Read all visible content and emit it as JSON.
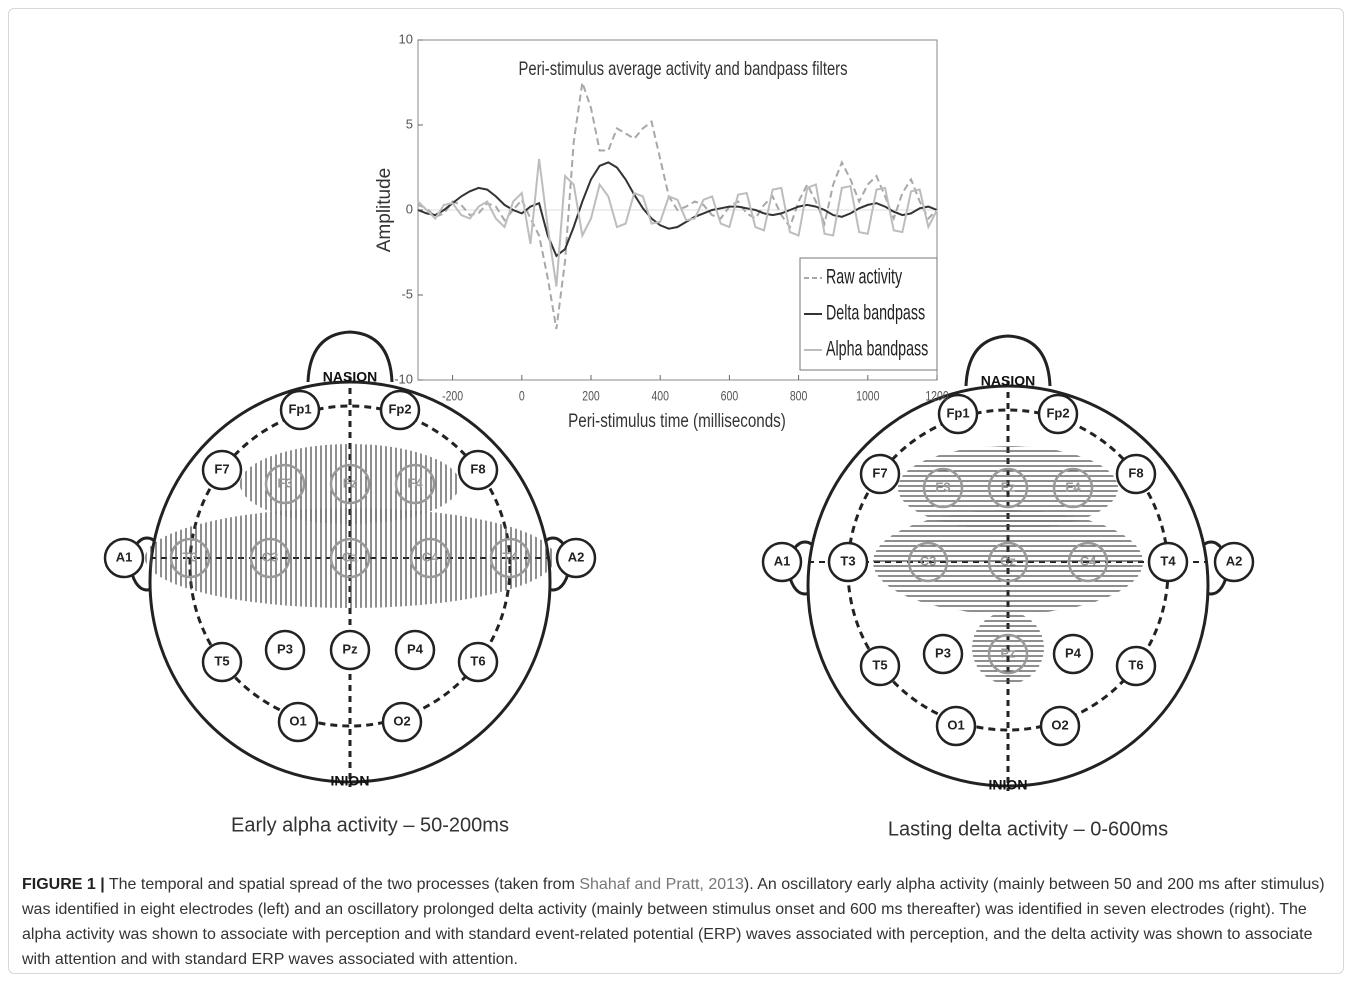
{
  "chart_data": {
    "type": "line",
    "title": "Peri-stimulus average activity and bandpass filters",
    "x_label": "Peri-stimulus time (milliseconds)",
    "y_label": "Amplitude",
    "x": [
      -300,
      -275,
      -250,
      -225,
      -200,
      -175,
      -150,
      -125,
      -100,
      -75,
      -50,
      -25,
      0,
      25,
      50,
      75,
      100,
      125,
      150,
      175,
      200,
      225,
      250,
      275,
      300,
      325,
      350,
      375,
      400,
      425,
      450,
      475,
      500,
      525,
      550,
      575,
      600,
      625,
      650,
      675,
      700,
      725,
      750,
      775,
      800,
      825,
      850,
      875,
      900,
      925,
      950,
      975,
      1000,
      1025,
      1050,
      1075,
      1100,
      1125,
      1150,
      1175,
      1200
    ],
    "series": [
      {
        "name": "Raw activity",
        "color": "#a8a8a8",
        "dash": true,
        "values": [
          0.3,
          0.1,
          -0.4,
          -0.2,
          0.5,
          0.3,
          -0.3,
          -0.2,
          0.4,
          0.2,
          -0.6,
          0,
          0.6,
          -0.5,
          -1.5,
          -4,
          -7,
          -3,
          4,
          7.5,
          6,
          3.5,
          3.5,
          4.8,
          4.5,
          4.2,
          4.8,
          5.2,
          3,
          0.8,
          0,
          0.2,
          0.5,
          0.3,
          -0.3,
          -0.5,
          0.2,
          0.5,
          -0.2,
          -0.5,
          0.3,
          0.8,
          -0.3,
          -1,
          0.5,
          1.5,
          0.5,
          -0.8,
          1.5,
          2.8,
          1.8,
          0.5,
          1.5,
          2,
          0.8,
          -0.5,
          1,
          1.8,
          0.5,
          -0.5,
          0
        ]
      },
      {
        "name": "Delta bandpass",
        "color": "#333333",
        "dash": false,
        "values": [
          0,
          -0.2,
          -0.3,
          0,
          0.4,
          0.8,
          1.1,
          1.3,
          1.2,
          0.8,
          0.3,
          0,
          -0.2,
          0.2,
          0.4,
          -1.5,
          -2.7,
          -2.3,
          -1,
          0.5,
          1.8,
          2.6,
          2.8,
          2.5,
          1.8,
          0.9,
          0.1,
          -0.5,
          -0.9,
          -1.1,
          -1,
          -0.7,
          -0.4,
          -0.2,
          0,
          0.1,
          0.2,
          0.2,
          0.1,
          0,
          -0.2,
          -0.3,
          -0.2,
          0,
          0.2,
          0.3,
          0.2,
          0,
          -0.3,
          -0.4,
          -0.2,
          0.1,
          0.3,
          0.4,
          0.2,
          -0.1,
          -0.3,
          -0.2,
          0.1,
          0.2,
          0
        ]
      },
      {
        "name": "Alpha bandpass",
        "color": "#bdbdbd",
        "dash": false,
        "values": [
          0.5,
          0,
          -0.5,
          0.3,
          0.4,
          -0.3,
          -0.5,
          0.2,
          0.5,
          -0.5,
          -1,
          0.5,
          1,
          -2,
          3,
          -1,
          -4.5,
          2,
          1.5,
          -1.5,
          -0.5,
          1.5,
          0.8,
          -1,
          -0.8,
          1,
          0.8,
          -0.8,
          -0.7,
          0.8,
          0.6,
          -0.6,
          -0.5,
          0.6,
          0.8,
          -0.8,
          -1,
          0.9,
          1,
          -1,
          -1.2,
          1.2,
          1.3,
          -1.3,
          -1.5,
          1.3,
          1.5,
          -1.4,
          -1.5,
          1.3,
          1.4,
          -1.3,
          -1.4,
          1.2,
          1.3,
          -1.2,
          -1.3,
          1.1,
          1.2,
          -1,
          0
        ]
      }
    ],
    "xlim": [
      -300,
      1200
    ],
    "xticks": [
      -200,
      0,
      200,
      400,
      600,
      800,
      1000,
      1200
    ],
    "ylim": [
      -10,
      10
    ],
    "yticks": [
      -10,
      -5,
      0,
      5,
      10
    ],
    "grid": false,
    "legend": "lower right"
  },
  "diagrams": [
    {
      "top": "NASION",
      "bottom": "INION",
      "electrodes": [
        "Fp1",
        "Fp2",
        "F7",
        "F3",
        "Fz",
        "F4",
        "F8",
        "A1",
        "T3",
        "C3",
        "Cz",
        "C4",
        "T4",
        "A2",
        "T5",
        "P3",
        "Pz",
        "P4",
        "T6",
        "O1",
        "O2"
      ],
      "caption": "Early alpha activity – 50-200ms"
    },
    {
      "top": "NASION",
      "bottom": "INION",
      "electrodes": [
        "Fp1",
        "Fp2",
        "F7",
        "F3",
        "Fz",
        "F4",
        "F8",
        "A1",
        "T3",
        "C3",
        "Cz",
        "C4",
        "T4",
        "A2",
        "T5",
        "P3",
        "Pz",
        "P4",
        "T6",
        "O1",
        "O2"
      ],
      "caption": "Lasting delta activity – 0-600ms"
    }
  ],
  "caption": {
    "label": "FIGURE 1 |",
    "text_1": "The temporal and spatial spread of the two processes (taken from ",
    "link": "Shahaf and Pratt, 2013",
    "text_2": "). An oscillatory early alpha activity (mainly between 50 and 200 ms after stimulus) was identified in eight electrodes (left) and an oscillatory prolonged delta activity (mainly between stimulus onset and 600 ms thereafter) was identified in seven electrodes (right). The alpha activity was shown to associate with perception and with standard event-related potential (ERP) waves associated with perception, and the delta activity was shown to associate with attention and with standard ERP waves associated with attention."
  }
}
